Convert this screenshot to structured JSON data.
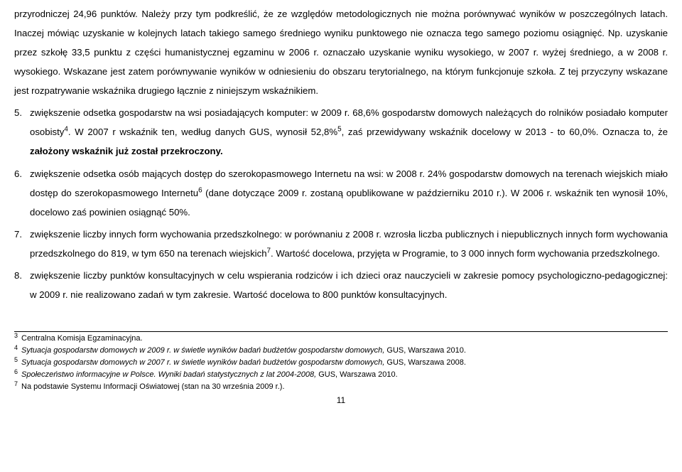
{
  "intro": {
    "p1": "przyrodniczej 24,96 punktów. Należy przy tym podkreślić, że ze względów metodologicznych nie można porównywać wyników w poszczególnych latach. Inaczej mówiąc uzyskanie w kolejnych latach takiego samego średniego wyniku punktowego nie oznacza tego samego poziomu osiągnięć. Np. uzyskanie przez szkołę 33,5 punktu z części humanistycznej egzaminu w 2006 r. oznaczało uzyskanie wyniku wysokiego, w 2007 r. wyżej średniego, a w 2008 r. wysokiego. Wskazane jest zatem porównywanie wyników w odniesieniu do obszaru terytorialnego, na którym funkcjonuje szkoła. Z tej przyczyny wskazane jest rozpatrywanie wskaźnika drugiego łącznie z niniejszym wskaźnikiem."
  },
  "items": {
    "5": {
      "t1": "zwiększenie odsetka gospodarstw na wsi posiadających komputer: w 2009 r. 68,6% gospodarstw domowych należących do rolników posiadało komputer osobisty",
      "t2": ". W 2007 r wskaźnik ten, według danych GUS, wynosił 52,8%",
      "t3": ", zaś przewidywany wskaźnik docelowy w 2013 - to 60,0%. Oznacza to, że ",
      "bold": "założony wskaźnik już został przekroczony."
    },
    "6": {
      "t1": "zwiększenie odsetka osób mających dostęp do szerokopasmowego Internetu na wsi: w 2008 r. 24% gospodarstw domowych na terenach wiejskich miało dostęp do szerokopasmowego Internetu",
      "t2": " (dane dotyczące 2009 r. zostaną opublikowane w październiku 2010 r.). W 2006 r. wskaźnik ten wynosił 10%, docelowo zaś powinien osiągnąć 50%."
    },
    "7": {
      "t1": "zwiększenie liczby innych form wychowania przedszkolnego: w porównaniu z 2008 r. wzrosła liczba publicznych i niepublicznych innych form wychowania przedszkolnego do 819, w tym 650 na terenach wiejskich",
      "t2": ". Wartość docelowa, przyjęta w Programie, to 3 000 innych form wychowania przedszkolnego."
    },
    "8": {
      "t1": "zwiększenie liczby punktów konsultacyjnych w celu wspierania rodziców i ich dzieci oraz nauczycieli w zakresie pomocy psychologiczno-pedagogicznej: w 2009 r. nie realizowano zadań w tym zakresie. Wartość docelowa to 800 punktów konsultacyjnych."
    }
  },
  "footnotes": {
    "3": {
      "text": "Centralna Komisja Egzaminacyjna."
    },
    "4": {
      "italic": "Sytuacja gospodarstw domowych w 2009 r. w świetle wyników badań budżetów gospodarstw domowych,",
      "rest": " GUS, Warszawa 2010."
    },
    "5": {
      "italic": "Sytuacja gospodarstw domowych w 2007 r. w świetle wyników badań budżetów gospodarstw domowych,",
      "rest": " GUS, Warszawa 2008."
    },
    "6": {
      "italic": "Społeczeństwo informacyjne w Polsce. Wyniki badań statystycznych z lat 2004-2008,",
      "rest": " GUS, Warszawa 2010."
    },
    "7": {
      "text": "Na podstawie Systemu Informacji Oświatowej (stan na 30 września 2009 r.)."
    }
  },
  "page": "11"
}
